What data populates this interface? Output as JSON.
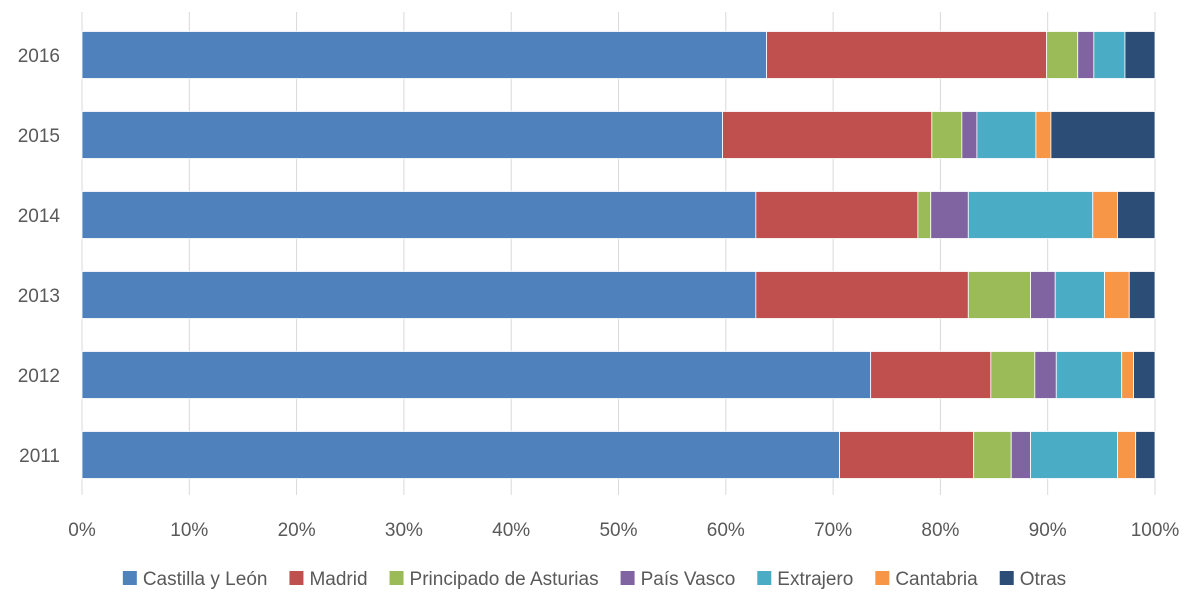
{
  "chart_data": {
    "type": "bar",
    "orientation": "horizontal",
    "stacked": "percent",
    "categories": [
      "2016",
      "2015",
      "2014",
      "2013",
      "2012",
      "2011"
    ],
    "series": [
      {
        "name": "Castilla y León",
        "color": "#4F81BD",
        "values": [
          63.8,
          59.7,
          62.8,
          62.8,
          73.5,
          70.6
        ]
      },
      {
        "name": "Madrid",
        "color": "#C0504D",
        "values": [
          26.1,
          19.5,
          15.1,
          19.8,
          11.2,
          12.5
        ]
      },
      {
        "name": "Principado de Asturias",
        "color": "#9BBB59",
        "values": [
          2.9,
          2.8,
          1.2,
          5.8,
          4.1,
          3.5
        ]
      },
      {
        "name": "País Vasco",
        "color": "#8064A2",
        "values": [
          1.5,
          1.4,
          3.5,
          2.3,
          2.0,
          1.8
        ]
      },
      {
        "name": "Extrajero",
        "color": "#4BACC6",
        "values": [
          2.9,
          5.5,
          11.6,
          4.6,
          6.1,
          8.1
        ]
      },
      {
        "name": "Cantabria",
        "color": "#F79646",
        "values": [
          0.0,
          1.4,
          2.3,
          2.3,
          1.1,
          1.7
        ]
      },
      {
        "name": "Otras",
        "color": "#2C4D75",
        "values": [
          2.8,
          9.7,
          3.5,
          2.4,
          2.0,
          1.8
        ]
      }
    ],
    "xlim": [
      0,
      100
    ],
    "x_ticks": [
      "0%",
      "10%",
      "20%",
      "30%",
      "40%",
      "50%",
      "60%",
      "70%",
      "80%",
      "90%",
      "100%"
    ],
    "grid": true,
    "legend_position": "bottom"
  }
}
